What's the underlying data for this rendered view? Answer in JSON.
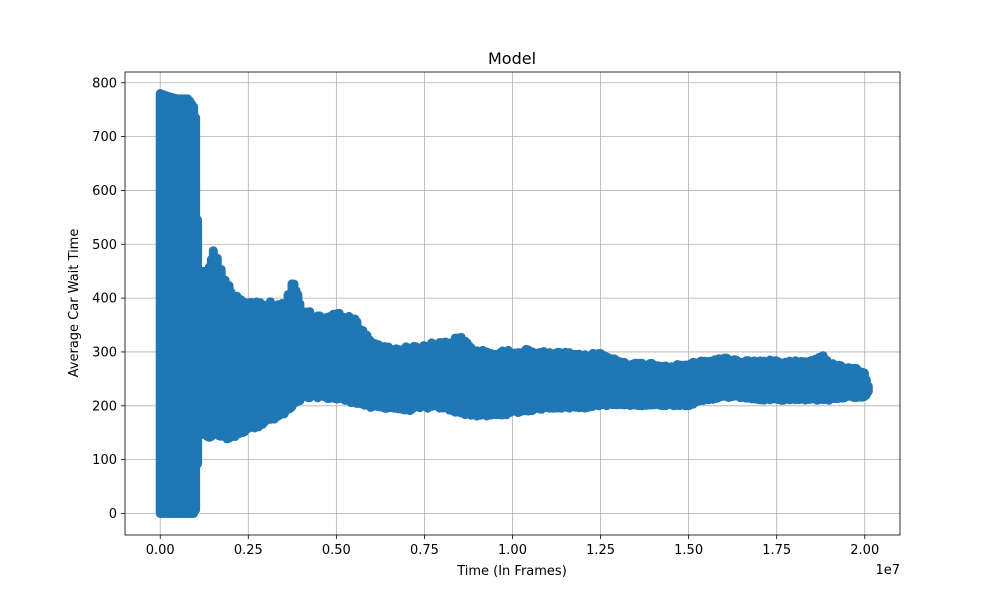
{
  "chart_data": {
    "type": "scatter",
    "title": "Model",
    "xlabel": "Time (In Frames)",
    "ylabel": "Average Car Wait Time",
    "x_offset_label": "1e7",
    "xlim": [
      -0.1,
      2.1
    ],
    "ylim": [
      -40,
      820
    ],
    "xticks": [
      0.0,
      0.25,
      0.5,
      0.75,
      1.0,
      1.25,
      1.5,
      1.75,
      2.0
    ],
    "xtick_labels": [
      "0.00",
      "0.25",
      "0.50",
      "0.75",
      "1.00",
      "1.25",
      "1.50",
      "1.75",
      "2.00"
    ],
    "yticks": [
      0,
      100,
      200,
      300,
      400,
      500,
      600,
      700,
      800
    ],
    "ytick_labels": [
      "0",
      "100",
      "200",
      "300",
      "400",
      "500",
      "600",
      "700",
      "800"
    ],
    "grid": true,
    "marker_color": "#1f77b4",
    "envelope": {
      "x": [
        0.0,
        0.02,
        0.05,
        0.08,
        0.1,
        0.11,
        0.12,
        0.15,
        0.2,
        0.25,
        0.3,
        0.35,
        0.38,
        0.4,
        0.45,
        0.5,
        0.55,
        0.6,
        0.65,
        0.7,
        0.75,
        0.8,
        0.85,
        0.9,
        0.95,
        1.0,
        1.05,
        1.1,
        1.15,
        1.2,
        1.25,
        1.3,
        1.35,
        1.4,
        1.45,
        1.5,
        1.55,
        1.6,
        1.65,
        1.7,
        1.75,
        1.8,
        1.85,
        1.88,
        1.9,
        1.95,
        2.0,
        2.01
      ],
      "y_max": [
        780,
        775,
        770,
        770,
        750,
        455,
        450,
        495,
        420,
        400,
        395,
        390,
        440,
        380,
        370,
        375,
        365,
        320,
        310,
        310,
        315,
        320,
        330,
        305,
        300,
        305,
        305,
        300,
        300,
        295,
        300,
        285,
        280,
        280,
        275,
        280,
        285,
        290,
        285,
        285,
        285,
        285,
        285,
        295,
        280,
        275,
        265,
        240
      ],
      "y_min": [
        0,
        0,
        0,
        0,
        0,
        140,
        135,
        140,
        135,
        155,
        165,
        180,
        195,
        210,
        215,
        210,
        205,
        195,
        195,
        190,
        195,
        195,
        185,
        180,
        180,
        185,
        190,
        195,
        195,
        195,
        200,
        200,
        200,
        200,
        200,
        200,
        210,
        215,
        215,
        210,
        210,
        210,
        210,
        210,
        210,
        215,
        215,
        225
      ]
    }
  }
}
